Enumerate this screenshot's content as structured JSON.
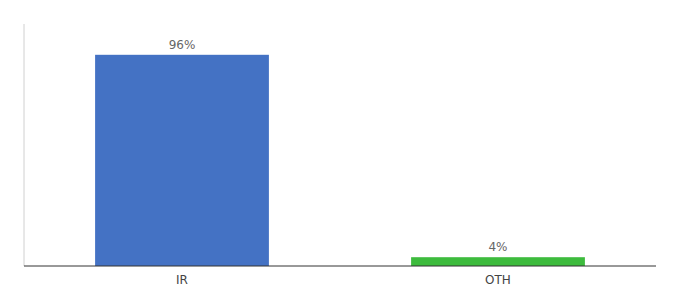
{
  "chart_data": {
    "type": "bar",
    "categories": [
      "IR",
      "OTH"
    ],
    "values": [
      96,
      4
    ],
    "value_labels": [
      "96%",
      "4%"
    ],
    "colors": [
      "#4472c4",
      "#3dbb3d"
    ],
    "ylim": [
      0,
      110
    ],
    "data_labels": true,
    "tick_labels": "x",
    "grid": false
  }
}
